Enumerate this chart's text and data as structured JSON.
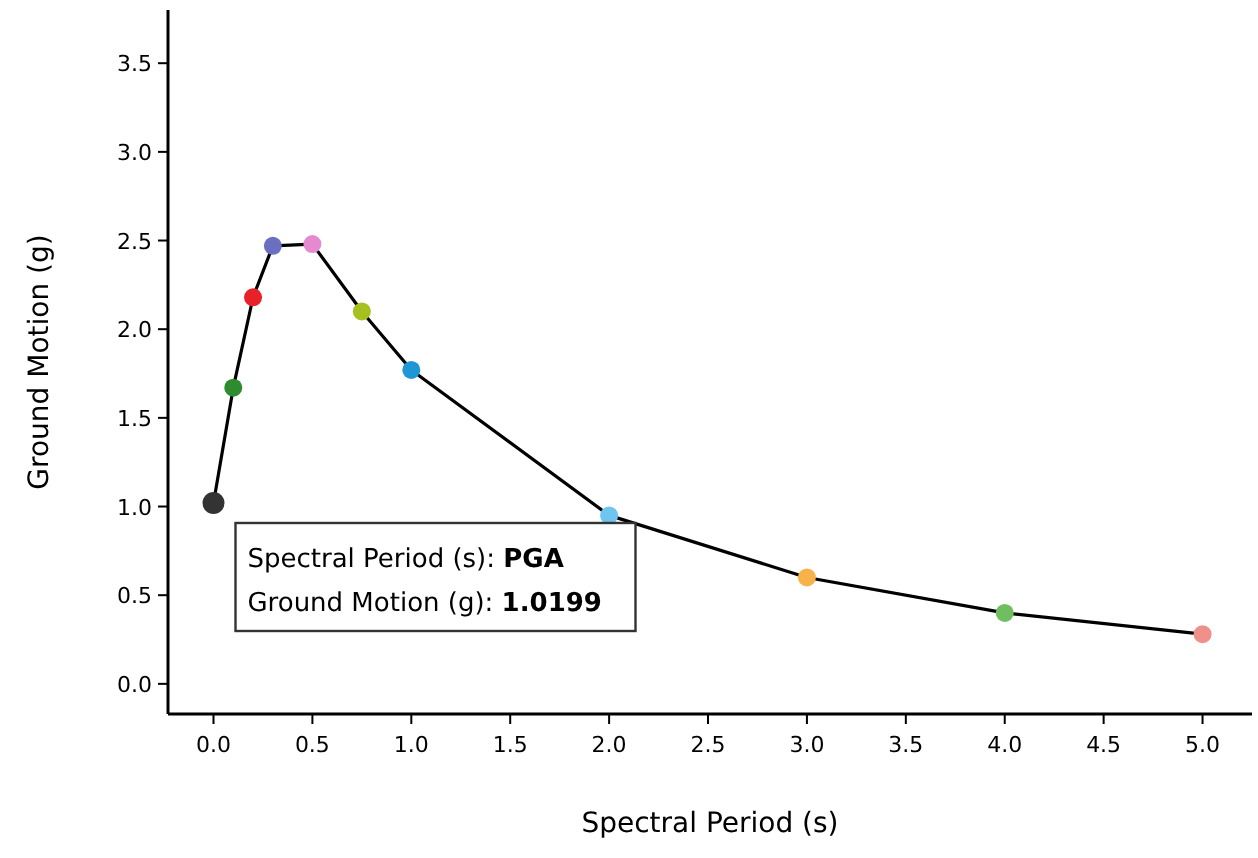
{
  "chart_data": {
    "type": "line",
    "xlabel": "Spectral Period (s)",
    "ylabel": "Ground Motion (g)",
    "x": [
      0,
      0.1,
      0.2,
      0.3,
      0.5,
      0.75,
      1.0,
      2.0,
      3.0,
      4.0,
      5.0
    ],
    "series": [
      {
        "color": "#000000",
        "colors": [
          "#333333",
          "#2e8b2e",
          "#e8202a",
          "#6a6fc0",
          "#e58ad0",
          "#a6c020",
          "#1f97d4",
          "#6ec6f0",
          "#f7b24a",
          "#6fbf60",
          "#f0908a"
        ],
        "values": [
          1.0199,
          1.67,
          2.18,
          2.47,
          2.48,
          2.1,
          1.77,
          0.95,
          0.6,
          0.4,
          0.28
        ]
      }
    ],
    "xlim": [
      -0.23,
      5.25
    ],
    "xticks": [
      {
        "value": 0,
        "label": "0.0"
      },
      {
        "value": 0.5,
        "label": "0.5"
      },
      {
        "value": 1,
        "label": "1.0"
      },
      {
        "value": 1.5,
        "label": "1.5"
      },
      {
        "value": 2,
        "label": "2.0"
      },
      {
        "value": 2.5,
        "label": "2.5"
      },
      {
        "value": 3,
        "label": "3.0"
      },
      {
        "value": 3.5,
        "label": "3.5"
      },
      {
        "value": 4,
        "label": "4.0"
      },
      {
        "value": 4.5,
        "label": "4.5"
      },
      {
        "value": 5,
        "label": "5.0"
      }
    ],
    "ylim": [
      -0.17,
      3.8
    ],
    "yticks": [
      {
        "value": 0,
        "label": "0.0"
      },
      {
        "value": 0.5,
        "label": "0.5"
      },
      {
        "value": 1,
        "label": "1.0"
      },
      {
        "value": 1.5,
        "label": "1.5"
      },
      {
        "value": 2,
        "label": "2.0"
      },
      {
        "value": 2.5,
        "label": "2.5"
      },
      {
        "value": 3,
        "label": "3.0"
      },
      {
        "value": 3.5,
        "label": "3.5"
      }
    ],
    "grid": false,
    "marker": "circle",
    "line_style": "solid",
    "annotations": [
      {
        "text": "Spectral Period (s): PGA\nGround Motion (g): 1.0199",
        "x": 0,
        "y": 1.0199
      }
    ]
  }
}
